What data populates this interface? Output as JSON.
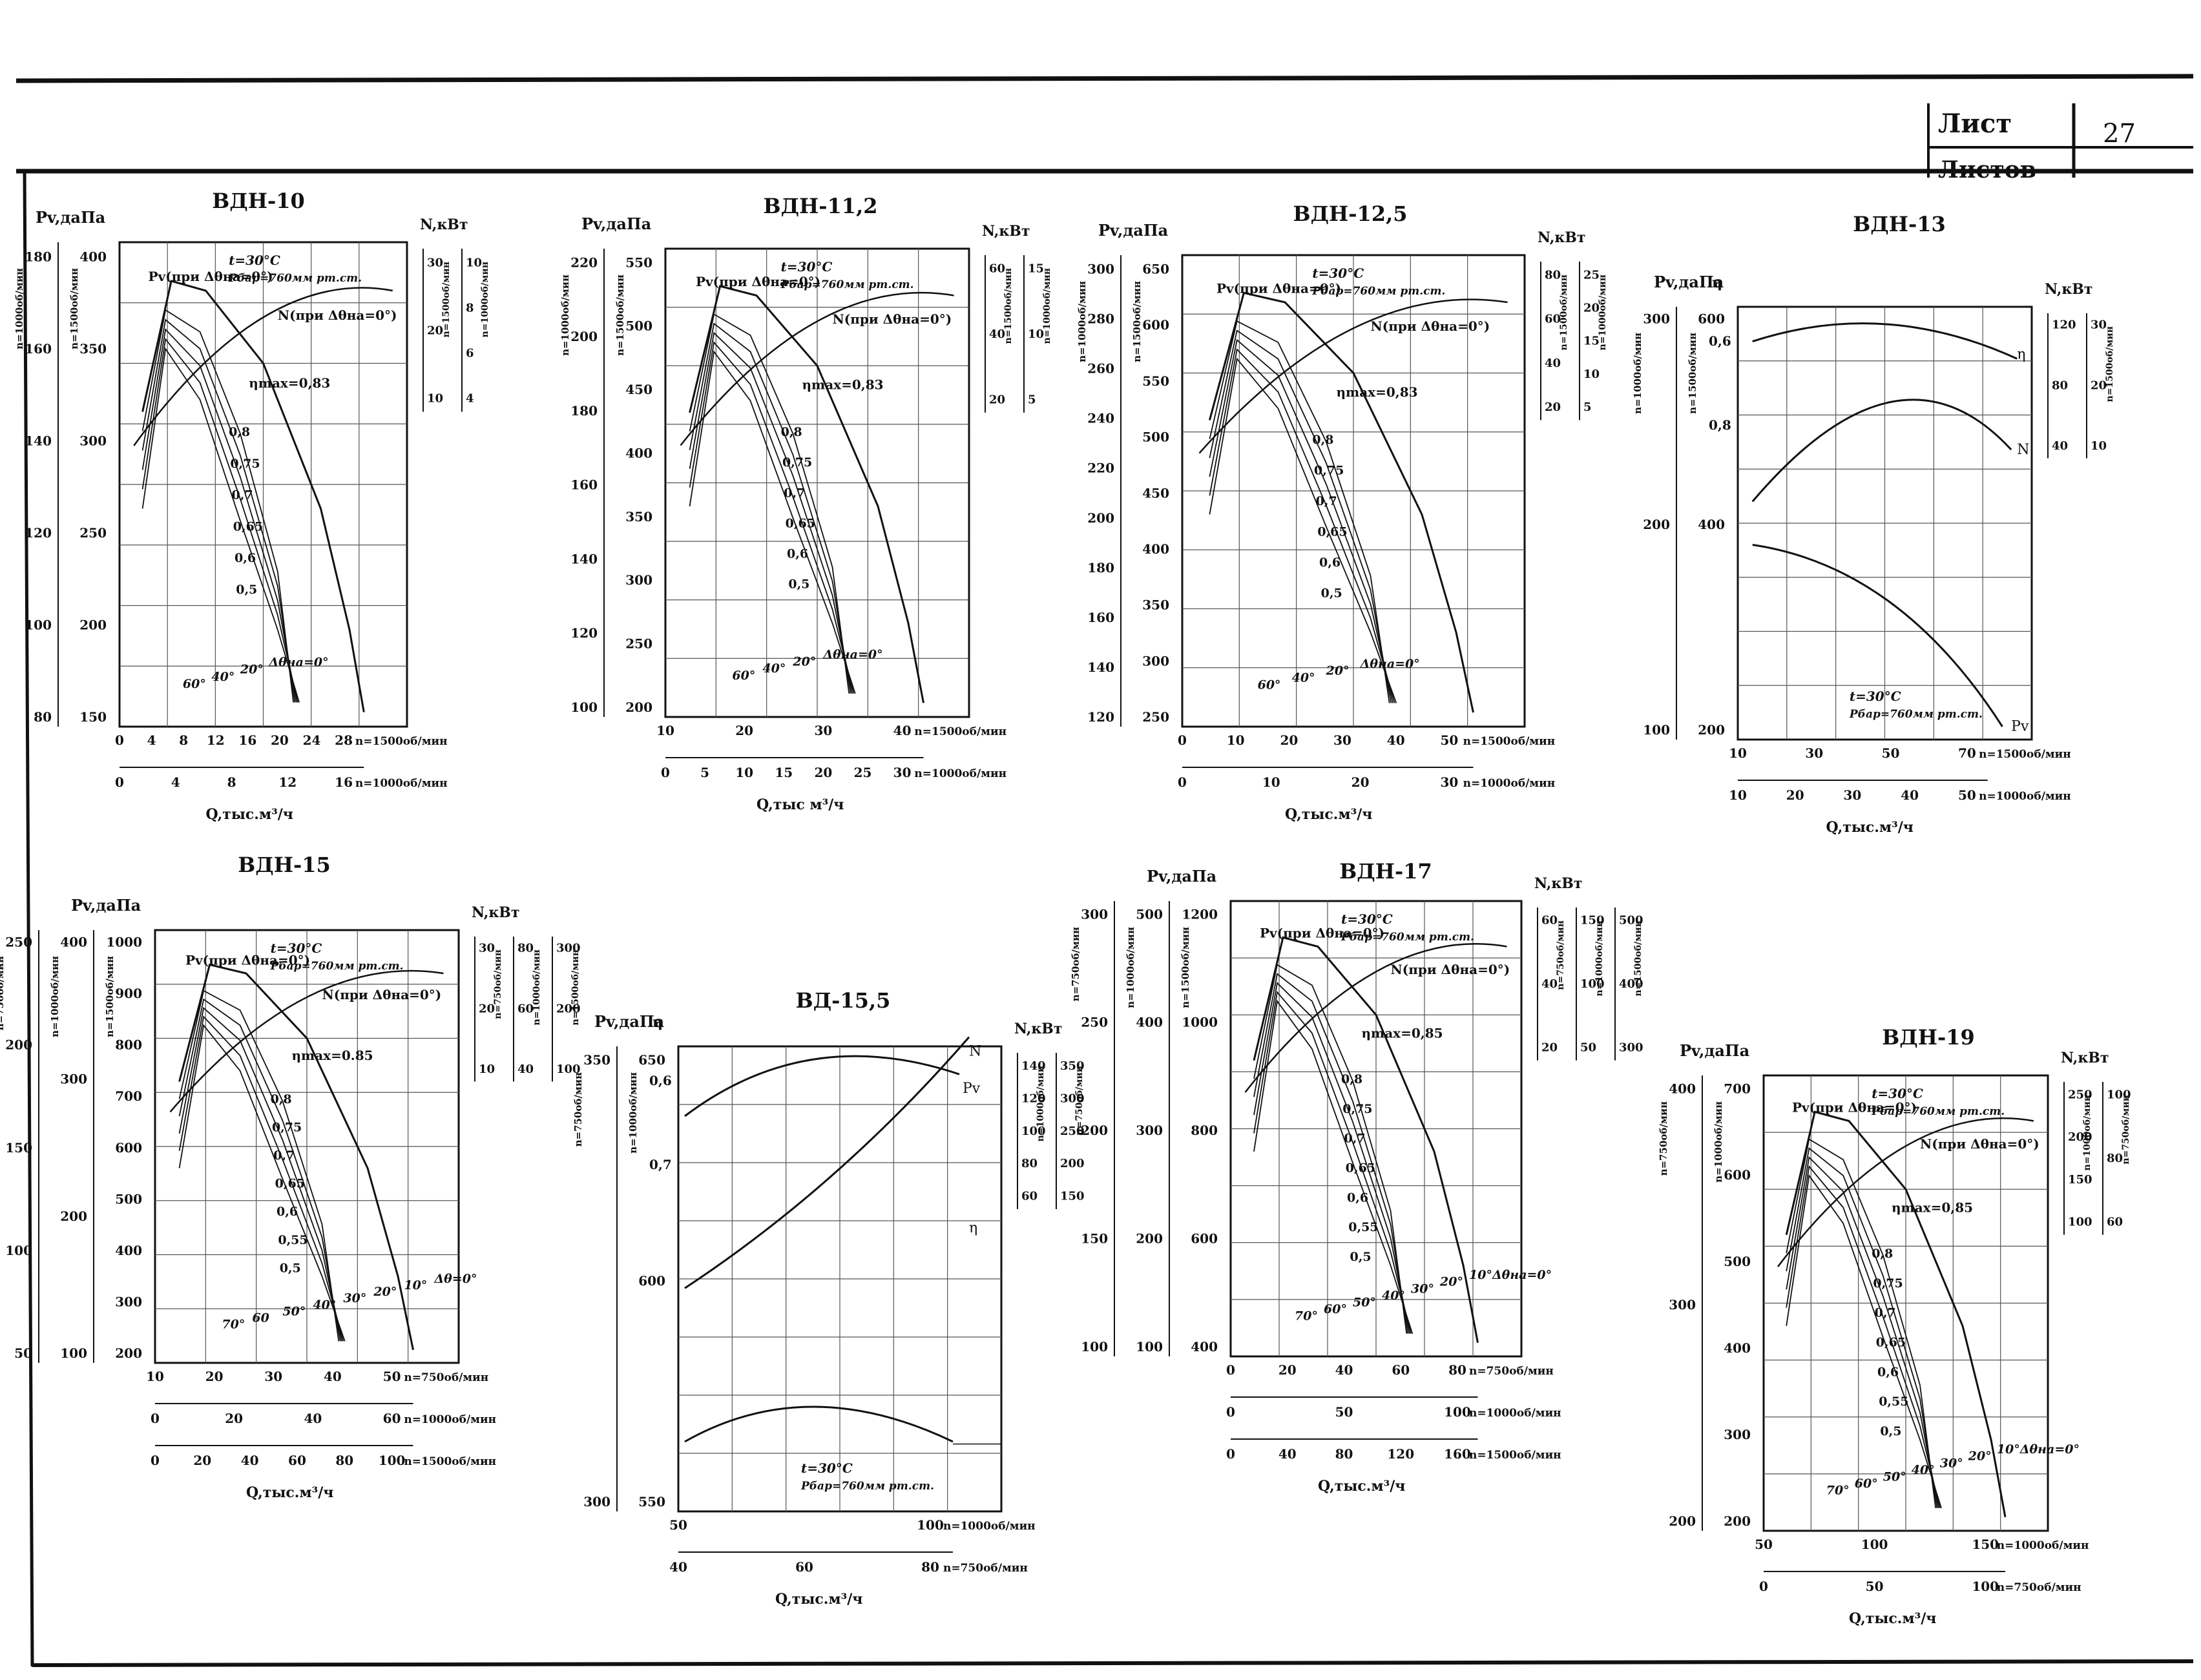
{
  "sheet": {
    "list_label": "Лист",
    "sheets_label": "Листов",
    "page_number": "27"
  },
  "common": {
    "t_note": "t=30°C",
    "p_note": "Pбар=760мм рт.ст."
  },
  "chart_data": [
    {
      "type": "line",
      "title": "ВДН-10",
      "ylabel": "Pv,даПа",
      "y2label": "N,кВт",
      "xlabel": "Q,тыс.м³/ч",
      "x_scales": [
        {
          "label": "n=1500об/мин",
          "ticks": [
            "0",
            "4",
            "8",
            "12",
            "16",
            "20",
            "24",
            "28"
          ]
        },
        {
          "label": "n=1000об/мин",
          "ticks": [
            "0",
            "4",
            "8",
            "12",
            "16"
          ]
        }
      ],
      "y_scales": [
        {
          "label": "n=1500об/мин",
          "ticks": [
            "150",
            "200",
            "250",
            "300",
            "350",
            "400"
          ]
        },
        {
          "label": "n=1000об/мин",
          "ticks": [
            "80",
            "100",
            "120",
            "140",
            "160",
            "180"
          ]
        }
      ],
      "n_scales": [
        {
          "label": "n=1500об/мин",
          "ticks": [
            "10",
            "20",
            "30"
          ]
        },
        {
          "label": "n=1000об/мин",
          "ticks": [
            "4",
            "6",
            "8",
            "10"
          ]
        }
      ],
      "curve_labels": [
        "Pv(при Δθна=0°)",
        "N(при Δθна=0°)",
        "ηmax=0,83",
        "0,8",
        "0,75",
        "0,7",
        "0,65",
        "0,6",
        "0,5"
      ],
      "angle_labels": [
        "60°",
        "40°",
        "20°",
        "Δθна=0°"
      ]
    },
    {
      "type": "line",
      "title": "ВДН-11,2",
      "ylabel": "Pv,даПа",
      "y2label": "N,кВт",
      "xlabel": "Q,тыс м³/ч",
      "x_scales": [
        {
          "label": "n=1500об/мин",
          "ticks": [
            "10",
            "20",
            "30",
            "40"
          ]
        },
        {
          "label": "n=1000об/мин",
          "ticks": [
            "0",
            "5",
            "10",
            "15",
            "20",
            "25",
            "30"
          ]
        }
      ],
      "y_scales": [
        {
          "label": "n=1500об/мин",
          "ticks": [
            "200",
            "250",
            "300",
            "350",
            "400",
            "450",
            "500",
            "550"
          ]
        },
        {
          "label": "n=1000об/мин",
          "ticks": [
            "100",
            "120",
            "140",
            "160",
            "180",
            "200",
            "220"
          ]
        }
      ],
      "n_scales": [
        {
          "label": "n=1500об/мин",
          "ticks": [
            "20",
            "40",
            "60"
          ]
        },
        {
          "label": "n=1000об/мин",
          "ticks": [
            "5",
            "10",
            "15"
          ]
        }
      ],
      "curve_labels": [
        "Pv(при Δθна=0°)",
        "N(при Δθна=0°)",
        "ηmax=0,83",
        "0,8",
        "0,75",
        "0,7",
        "0,65",
        "0,6",
        "0,5"
      ],
      "angle_labels": [
        "60°",
        "40°",
        "20°",
        "Δθна=0°"
      ]
    },
    {
      "type": "line",
      "title": "ВДН-12,5",
      "ylabel": "Pv,даПа",
      "y2label": "N,кВт",
      "xlabel": "Q,тыс.м³/ч",
      "x_scales": [
        {
          "label": "n=1500об/мин",
          "ticks": [
            "0",
            "10",
            "20",
            "30",
            "40",
            "50"
          ]
        },
        {
          "label": "n=1000об/мин",
          "ticks": [
            "0",
            "10",
            "20",
            "30"
          ]
        }
      ],
      "y_scales": [
        {
          "label": "n=1500об/мин",
          "ticks": [
            "250",
            "300",
            "350",
            "400",
            "450",
            "500",
            "550",
            "600",
            "650"
          ]
        },
        {
          "label": "n=1000об/мин",
          "ticks": [
            "120",
            "140",
            "160",
            "180",
            "200",
            "220",
            "240",
            "260",
            "280",
            "300"
          ]
        }
      ],
      "n_scales": [
        {
          "label": "n=1500об/мин",
          "ticks": [
            "20",
            "40",
            "60",
            "80"
          ]
        },
        {
          "label": "n=1000об/мин",
          "ticks": [
            "5",
            "10",
            "15",
            "20",
            "25"
          ]
        }
      ],
      "curve_labels": [
        "Pv(при Δθна=0°)",
        "N(при Δθна=0°)",
        "ηmax=0,83",
        "0,8",
        "0,75",
        "0,7",
        "0,65",
        "0,6",
        "0,5"
      ],
      "angle_labels": [
        "60°",
        "40°",
        "20°",
        "Δθна=0°"
      ]
    },
    {
      "type": "line",
      "title": "ВДН-13",
      "ylabel": "Pv,даПа",
      "y2label": "N,кВт",
      "y3label": "η",
      "xlabel": "Q,тыс.м³/ч",
      "x_scales": [
        {
          "label": "n=1500об/мин",
          "ticks": [
            "10",
            "30",
            "50",
            "70"
          ]
        },
        {
          "label": "n=1000об/мин",
          "ticks": [
            "10",
            "20",
            "30",
            "40",
            "50"
          ]
        }
      ],
      "y_scales": [
        {
          "label": "n=1500об/мин",
          "ticks": [
            "200",
            "400",
            "600"
          ]
        },
        {
          "label": "n=1000об/мин",
          "ticks": [
            "100",
            "200",
            "300"
          ]
        }
      ],
      "eta_ticks": [
        "0,6",
        "0,8"
      ],
      "n_scales": [
        {
          "label": "",
          "ticks": [
            "40",
            "80",
            "120"
          ]
        },
        {
          "label": "n=1500об/мин",
          "ticks": [
            "10",
            "20",
            "30"
          ]
        }
      ],
      "curve_labels": [
        "η",
        "N",
        "Pv"
      ]
    },
    {
      "type": "line",
      "title": "ВДН-15",
      "ylabel": "Pv,даПа",
      "y2label": "N,кВт",
      "xlabel": "Q,тыс.м³/ч",
      "x_scales": [
        {
          "label": "n=750об/мин",
          "ticks": [
            "10",
            "20",
            "30",
            "40",
            "50"
          ]
        },
        {
          "label": "n=1000об/мин",
          "ticks": [
            "0",
            "20",
            "40",
            "60"
          ]
        },
        {
          "label": "n=1500об/мин",
          "ticks": [
            "0",
            "20",
            "40",
            "60",
            "80",
            "100"
          ]
        }
      ],
      "y_scales": [
        {
          "label": "n=1500об/мин",
          "ticks": [
            "200",
            "300",
            "400",
            "500",
            "600",
            "700",
            "800",
            "900",
            "1000"
          ]
        },
        {
          "label": "n=1000об/мин",
          "ticks": [
            "100",
            "200",
            "300",
            "400"
          ]
        },
        {
          "label": "n=750об/мин",
          "ticks": [
            "50",
            "100",
            "150",
            "200",
            "250"
          ]
        }
      ],
      "n_scales": [
        {
          "label": "n=750об/мин",
          "ticks": [
            "10",
            "20",
            "30"
          ]
        },
        {
          "label": "n=1000об/мин",
          "ticks": [
            "40",
            "60",
            "80"
          ]
        },
        {
          "label": "n=1500об/мин",
          "ticks": [
            "100",
            "200",
            "300"
          ]
        }
      ],
      "curve_labels": [
        "Pv(при Δθна=0°)",
        "N(при Δθна=0°)",
        "ηmax=0.85",
        "0,8",
        "0,75",
        "0,7",
        "0,65",
        "0,6",
        "0,55",
        "0,5"
      ],
      "angle_labels": [
        "70°",
        "60",
        "50°",
        "40°",
        "30°",
        "20°",
        "10°",
        "Δθ=0°"
      ]
    },
    {
      "type": "line",
      "title": "ВД-15,5",
      "ylabel": "Pv,даПа",
      "y2label": "N,кВт",
      "y3label": "η",
      "xlabel": "Q,тыс.м³/ч",
      "x_scales": [
        {
          "label": "n=1000об/мин",
          "ticks": [
            "50",
            "100"
          ]
        },
        {
          "label": "n=750об/мин",
          "ticks": [
            "40",
            "60",
            "80"
          ]
        }
      ],
      "y_scales": [
        {
          "label": "n=1000об/мин",
          "ticks": [
            "550",
            "600",
            "650"
          ]
        },
        {
          "label": "n=750об/мин",
          "ticks": [
            "300",
            "350"
          ]
        }
      ],
      "eta_ticks": [
        "0,6",
        "0,7"
      ],
      "n_scales": [
        {
          "label": "n=1000об/мин",
          "ticks": [
            "60",
            "80",
            "100",
            "120",
            "140"
          ]
        },
        {
          "label": "n=750об/мин",
          "ticks": [
            "150",
            "200",
            "250",
            "300",
            "350"
          ]
        }
      ],
      "curve_labels": [
        "N",
        "Pv",
        "η"
      ]
    },
    {
      "type": "line",
      "title": "ВДН-17",
      "ylabel": "Pv,даПа",
      "y2label": "N,кВт",
      "xlabel": "Q,тыс.м³/ч",
      "x_scales": [
        {
          "label": "n=750об/мин",
          "ticks": [
            "0",
            "20",
            "40",
            "60",
            "80"
          ]
        },
        {
          "label": "n=1000об/мин",
          "ticks": [
            "0",
            "50",
            "100"
          ]
        },
        {
          "label": "n=1500об/мин",
          "ticks": [
            "0",
            "40",
            "80",
            "120",
            "160"
          ]
        }
      ],
      "y_scales": [
        {
          "label": "n=1500об/мин",
          "ticks": [
            "400",
            "600",
            "800",
            "1000",
            "1200"
          ]
        },
        {
          "label": "n=1000об/мин",
          "ticks": [
            "100",
            "200",
            "300",
            "400",
            "500"
          ]
        },
        {
          "label": "n=750об/мин",
          "ticks": [
            "100",
            "150",
            "200",
            "250",
            "300"
          ]
        }
      ],
      "n_scales": [
        {
          "label": "n=750об/мин",
          "ticks": [
            "20",
            "40",
            "60"
          ]
        },
        {
          "label": "n=1000об/мин",
          "ticks": [
            "50",
            "100",
            "150"
          ]
        },
        {
          "label": "n=1500об/мин",
          "ticks": [
            "300",
            "400",
            "500"
          ]
        }
      ],
      "curve_labels": [
        "Pv(при Δθна=0°)",
        "N(при Δθна=0°)",
        "ηmax=0,85",
        "0,8",
        "0,75",
        "0,7",
        "0,65",
        "0,6",
        "0,55",
        "0,5"
      ],
      "angle_labels": [
        "70°",
        "60°",
        "50°",
        "40°",
        "30°",
        "20°",
        "10°Δθна=0°"
      ]
    },
    {
      "type": "line",
      "title": "ВДН-19",
      "ylabel": "Pv,даПа",
      "y2label": "N,кВт",
      "xlabel": "Q,тыс.м³/ч",
      "x_scales": [
        {
          "label": "n=1000об/мин",
          "ticks": [
            "50",
            "100",
            "150"
          ]
        },
        {
          "label": "n=750об/мин",
          "ticks": [
            "0",
            "50",
            "100"
          ]
        }
      ],
      "y_scales": [
        {
          "label": "n=1000об/мин",
          "ticks": [
            "200",
            "300",
            "400",
            "500",
            "600",
            "700"
          ]
        },
        {
          "label": "n=750об/мин",
          "ticks": [
            "200",
            "300",
            "400"
          ]
        }
      ],
      "n_scales": [
        {
          "label": "n=1000об/мин",
          "ticks": [
            "100",
            "150",
            "200",
            "250"
          ]
        },
        {
          "label": "n=750об/мин",
          "ticks": [
            "60",
            "80",
            "100"
          ]
        }
      ],
      "curve_labels": [
        "Pv(при Δθна=0°)",
        "N(при Δθна=0°)",
        "ηmax=0,85",
        "0,8",
        "0,75",
        "0,7",
        "0,65",
        "0,6",
        "0,55",
        "0,5"
      ],
      "angle_labels": [
        "70°",
        "60°",
        "50°",
        "40°",
        "30°",
        "20°",
        "10°Δθна=0°"
      ]
    }
  ]
}
